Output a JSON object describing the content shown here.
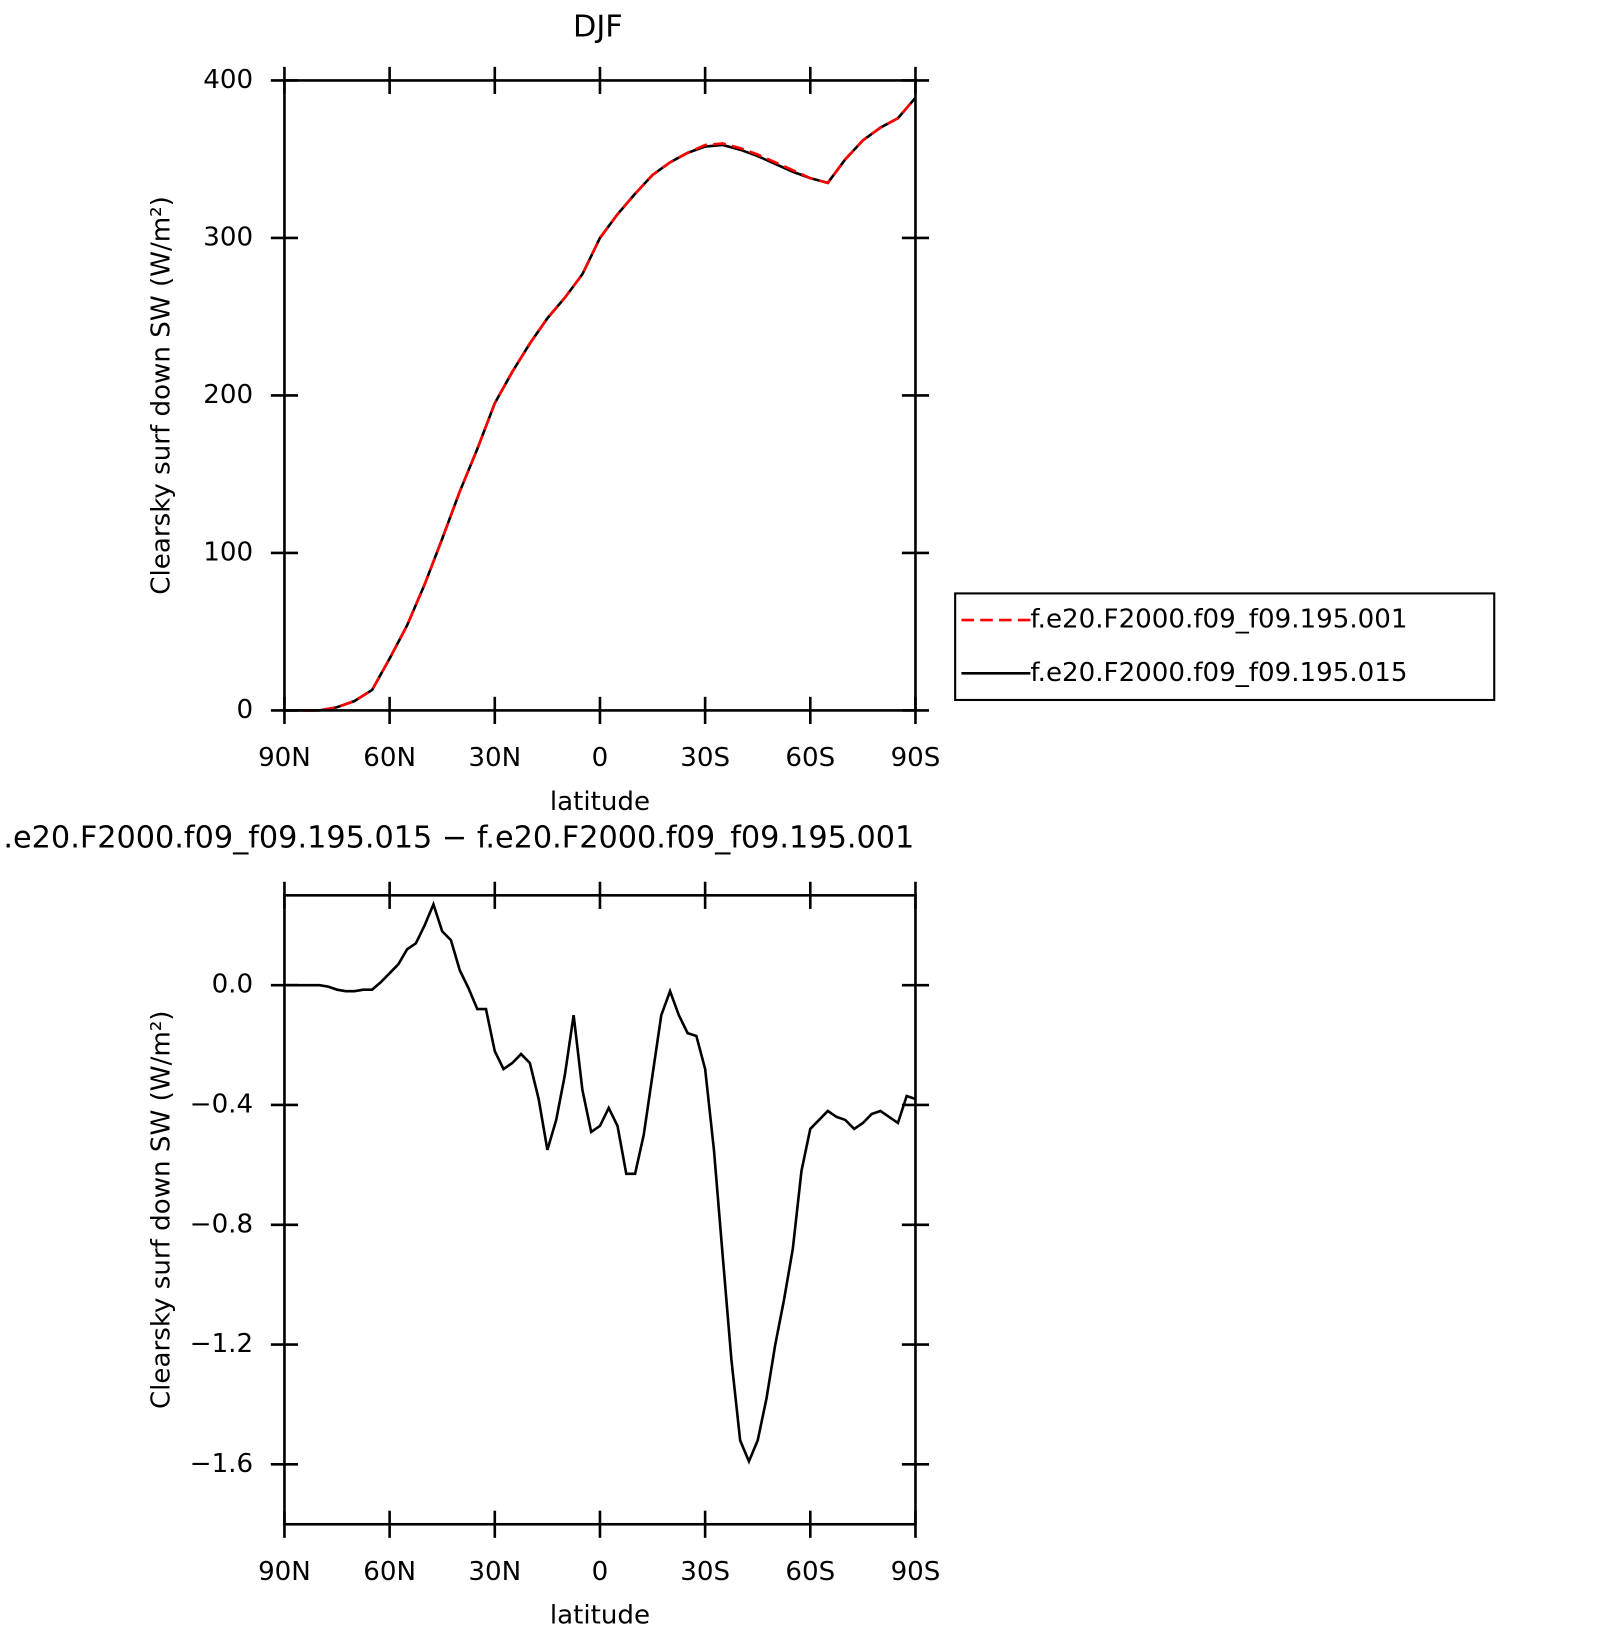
{
  "chart_data": [
    {
      "type": "line",
      "title": "DJF",
      "x_label": "latitude",
      "y_label": "Clearsky surf down SW (W/m²)",
      "x": [
        90,
        85,
        80,
        75,
        70,
        65,
        60,
        55,
        50,
        45,
        40,
        35,
        30,
        25,
        20,
        15,
        10,
        5,
        0,
        -5,
        -10,
        -15,
        -20,
        -25,
        -30,
        -35,
        -40,
        -45,
        -50,
        -55,
        -60,
        -65,
        -70,
        -75,
        -80,
        -85,
        -90
      ],
      "xlim": [
        90,
        -90
      ],
      "xticks": [
        {
          "value": 90,
          "label": "90N"
        },
        {
          "value": 60,
          "label": "60N"
        },
        {
          "value": 30,
          "label": "30N"
        },
        0,
        {
          "value": -30,
          "label": "30S"
        },
        {
          "value": -60,
          "label": "60S"
        },
        {
          "value": -90,
          "label": "90S"
        }
      ],
      "ylim": [
        0,
        400
      ],
      "yticks": [
        0,
        100,
        200,
        300,
        400
      ],
      "legend": "outside-right",
      "series": [
        {
          "name": "f.e20.F2000.f09_f09.195.001",
          "color": "#ff0000",
          "line_style": "dashed",
          "values": [
            0,
            0,
            0,
            2,
            6,
            13,
            33,
            54,
            80,
            109,
            139,
            166,
            195,
            215,
            233,
            249,
            262,
            277,
            300,
            315,
            328,
            340,
            348,
            354,
            359,
            360,
            357,
            353,
            348,
            343,
            338,
            335,
            350,
            362,
            370,
            376,
            389
          ]
        },
        {
          "name": "f.e20.F2000.f09_f09.195.015",
          "color": "#000000",
          "line_style": "solid",
          "values": [
            0,
            0,
            0,
            2,
            6,
            13,
            33,
            54,
            80,
            109,
            139,
            166,
            195,
            215,
            233,
            249,
            262,
            277,
            300,
            315,
            328,
            340,
            348,
            354,
            358,
            359,
            356,
            352,
            347,
            342,
            338,
            335,
            350,
            362,
            370,
            376,
            389
          ]
        }
      ]
    },
    {
      "type": "line",
      "title": ".e20.F2000.f09_f09.195.015 − f.e20.F2000.f09_f09.195.001",
      "x_label": "latitude",
      "y_label": "Clearsky surf down SW (W/m²)",
      "x": [
        90,
        87.5,
        85,
        82.5,
        80,
        77.5,
        75,
        72.5,
        70,
        67.5,
        65,
        62.5,
        60,
        57.5,
        55,
        52.5,
        50,
        47.5,
        45,
        42.5,
        40,
        37.5,
        35,
        32.5,
        30,
        27.5,
        25,
        22.5,
        20,
        17.5,
        15,
        12.5,
        10,
        7.5,
        5,
        2.5,
        0,
        -2.5,
        -5,
        -7.5,
        -10,
        -12.5,
        -15,
        -17.5,
        -20,
        -22.5,
        -25,
        -27.5,
        -30,
        -32.5,
        -35,
        -37.5,
        -40,
        -42.5,
        -45,
        -47.5,
        -50,
        -52.5,
        -55,
        -57.5,
        -60,
        -62.5,
        -65,
        -67.5,
        -70,
        -72.5,
        -75,
        -77.5,
        -80,
        -82.5,
        -85,
        -87.5,
        -90
      ],
      "xlim": [
        90,
        -90
      ],
      "xticks": [
        {
          "value": 90,
          "label": "90N"
        },
        {
          "value": 60,
          "label": "60N"
        },
        {
          "value": 30,
          "label": "30N"
        },
        0,
        {
          "value": -30,
          "label": "30S"
        },
        {
          "value": -60,
          "label": "60S"
        },
        {
          "value": -90,
          "label": "90S"
        }
      ],
      "ylim": [
        -1.8,
        0.3
      ],
      "yticks": [
        {
          "value": 0,
          "label": "0.0"
        },
        {
          "value": -0.4,
          "label": "−0.4"
        },
        {
          "value": -0.8,
          "label": "−0.8"
        },
        {
          "value": -1.2,
          "label": "−1.2"
        },
        {
          "value": -1.6,
          "label": "−1.6"
        }
      ],
      "series": [
        {
          "color": "#000000",
          "line_style": "solid",
          "values": [
            0,
            0,
            0,
            0,
            0,
            -0.005,
            -0.015,
            -0.02,
            -0.02,
            -0.015,
            -0.015,
            0.01,
            0.04,
            0.07,
            0.12,
            0.14,
            0.2,
            0.27,
            0.18,
            0.15,
            0.05,
            -0.01,
            -0.08,
            -0.08,
            -0.22,
            -0.28,
            -0.26,
            -0.23,
            -0.26,
            -0.38,
            -0.55,
            -0.45,
            -0.3,
            -0.1,
            -0.35,
            -0.49,
            -0.47,
            -0.41,
            -0.47,
            -0.63,
            -0.63,
            -0.5,
            -0.3,
            -0.1,
            -0.02,
            -0.1,
            -0.16,
            -0.17,
            -0.28,
            -0.55,
            -0.9,
            -1.25,
            -1.52,
            -1.59,
            -1.52,
            -1.38,
            -1.2,
            -1.05,
            -0.88,
            -0.62,
            -0.48,
            -0.45,
            -0.42,
            -0.44,
            -0.45,
            -0.48,
            -0.46,
            -0.43,
            -0.42,
            -0.44,
            -0.46,
            -0.37,
            -0.38
          ]
        }
      ]
    }
  ]
}
